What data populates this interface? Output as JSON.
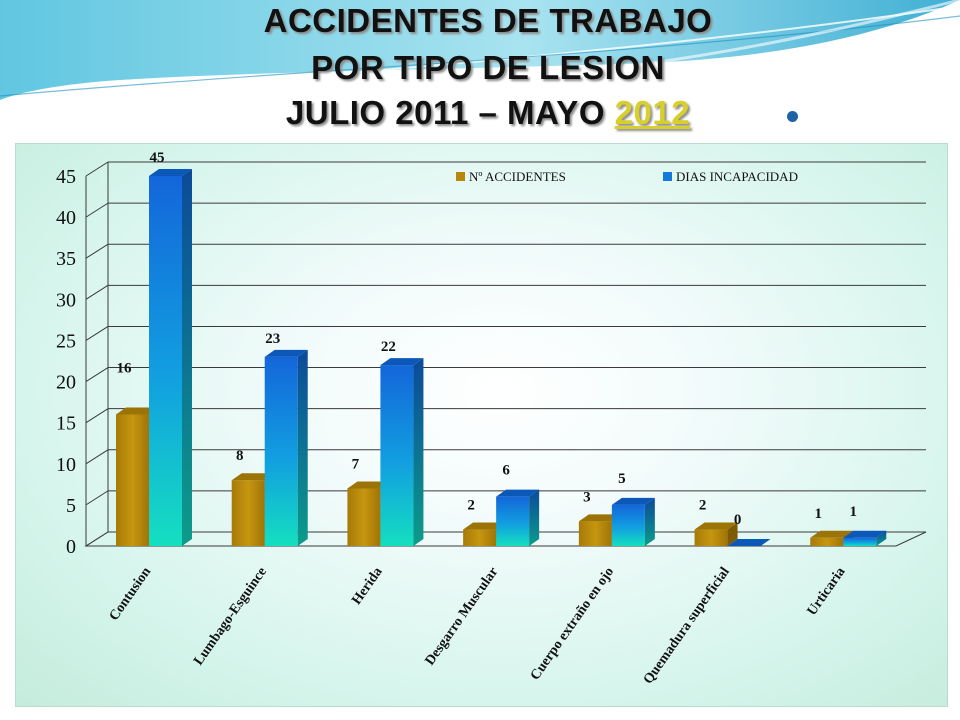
{
  "title": {
    "line1": "ACCIDENTES DE TRABAJO",
    "line2": "POR TIPO DE LESION",
    "line3_prefix": "JULIO 2011 – MAYO ",
    "line3_highlight": "2012"
  },
  "colors": {
    "series1": "#b8860b",
    "series2": "#1479d9",
    "series2_bottom": "#13dcc0",
    "banner_teal": "#3fb5d6",
    "bullet": "#1e63a8"
  },
  "chart_data": {
    "type": "bar",
    "style": "3d-clustered-column",
    "categories": [
      "Contusion",
      "Lumbago-Esguince",
      "Herida",
      "Desgarro Muscular",
      "Cuerpo extraño en ojo",
      "Quemadura superficial",
      "Urticaria"
    ],
    "series": [
      {
        "name": "Nº ACCIDENTES",
        "values": [
          16,
          8,
          7,
          2,
          3,
          2,
          1
        ]
      },
      {
        "name": "DIAS INCAPACIDAD",
        "values": [
          45,
          23,
          22,
          6,
          5,
          0,
          1
        ]
      }
    ],
    "ylim": [
      0,
      45
    ],
    "yticks": [
      0,
      5,
      10,
      15,
      20,
      25,
      30,
      35,
      40,
      45
    ],
    "grid": true,
    "legend_position": "top-right",
    "data_labels": true
  }
}
